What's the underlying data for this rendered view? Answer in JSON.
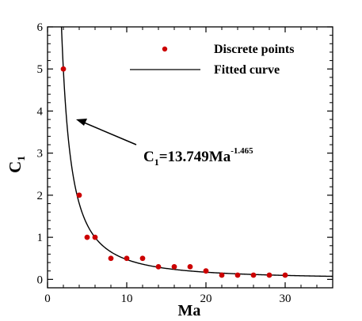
{
  "chart_data": {
    "type": "scatter",
    "xlabel": "Ma",
    "ylabel_main": "C",
    "ylabel_sub": "1",
    "xlim": [
      0,
      36
    ],
    "ylim": [
      -0.2,
      6
    ],
    "xticks": [
      0,
      10,
      20,
      30
    ],
    "yticks": [
      0,
      1,
      2,
      3,
      4,
      5,
      6
    ],
    "x_tick_labels": [
      "0",
      "10",
      "20",
      "30"
    ],
    "y_tick_labels": [
      "0",
      "1",
      "2",
      "3",
      "4",
      "5",
      "6"
    ],
    "grid": false,
    "legend_position": "top-right",
    "series": [
      {
        "name": "Discrete points",
        "kind": "scatter",
        "color": "#cc0000",
        "points": [
          [
            2,
            5
          ],
          [
            4,
            2
          ],
          [
            5,
            1
          ],
          [
            6,
            1
          ],
          [
            8,
            0.5
          ],
          [
            10,
            0.5
          ],
          [
            12,
            0.5
          ],
          [
            14,
            0.3
          ],
          [
            16,
            0.3
          ],
          [
            18,
            0.3
          ],
          [
            20,
            0.2
          ],
          [
            22,
            0.1
          ],
          [
            24,
            0.1
          ],
          [
            26,
            0.1
          ],
          [
            28,
            0.1
          ],
          [
            30,
            0.1
          ]
        ]
      },
      {
        "name": "Fitted curve",
        "kind": "line",
        "color": "#000000",
        "coefficient": 13.749,
        "exponent": -1.465
      }
    ],
    "annotation": {
      "base": "C",
      "sub": "1",
      "mid": "=13.749Ma",
      "sup": "-1.465"
    }
  }
}
